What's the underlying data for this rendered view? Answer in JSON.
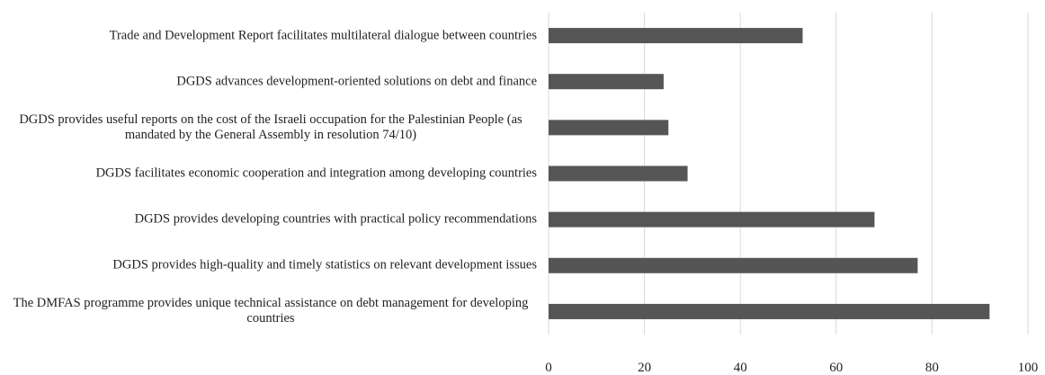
{
  "chart_data": {
    "type": "barh",
    "categories": [
      "Trade and Development Report facilitates multilateral dialogue between countries",
      "DGDS advances development-oriented solutions on debt and finance",
      "DGDS provides useful reports on the cost of the Israeli occupation for the Palestinian People (as mandated by the General Assembly in resolution 74/10)",
      "DGDS facilitates economic cooperation and integration among developing countries",
      "DGDS provides developing countries with practical policy recommendations",
      "DGDS provides high-quality and timely statistics on relevant development issues",
      "The DMFAS programme provides unique technical assistance on debt management for developing countries"
    ],
    "values": [
      53,
      24,
      25,
      29,
      68,
      77,
      92
    ],
    "color": "#555555",
    "xlim": [
      0,
      100
    ],
    "xticks": [
      0,
      20,
      40,
      60,
      80,
      100
    ],
    "grid": true
  }
}
